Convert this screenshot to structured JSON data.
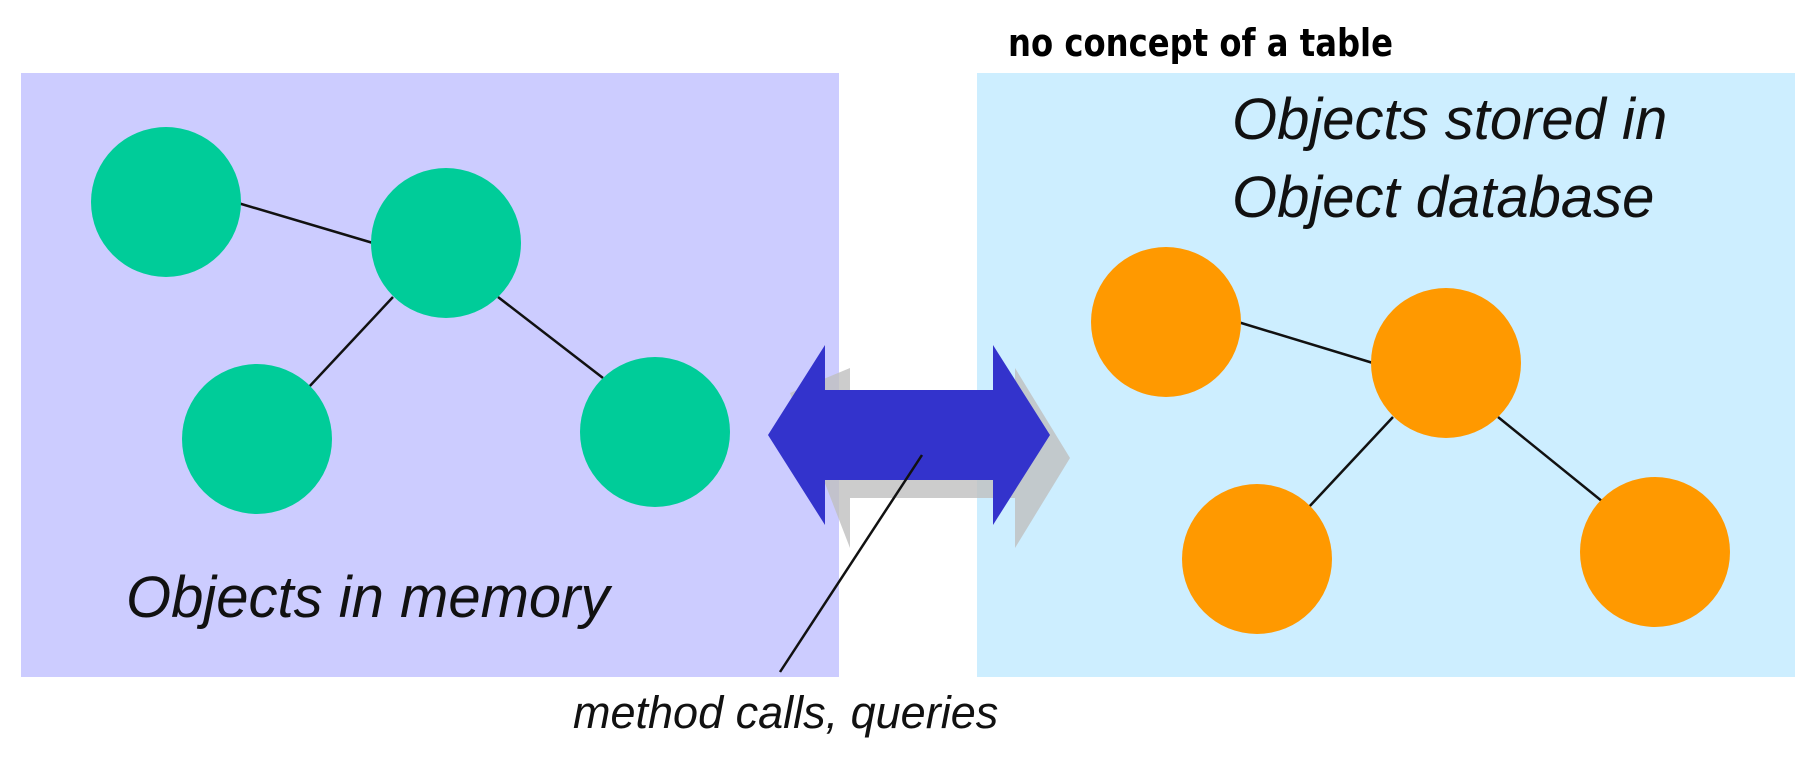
{
  "annotation": {
    "text": "no concept of a table"
  },
  "left_panel": {
    "label": "Objects in memory",
    "panel_color": "#ccccff",
    "node_color": "#00cc99"
  },
  "right_panel": {
    "label_line1": "Objects stored in",
    "label_line2": "Object database",
    "panel_color": "#cdeeff",
    "node_color": "#ff9900"
  },
  "connector": {
    "label": "method calls, queries",
    "arrow_color": "#3333cc",
    "shadow_color": "#bfbfbf"
  }
}
